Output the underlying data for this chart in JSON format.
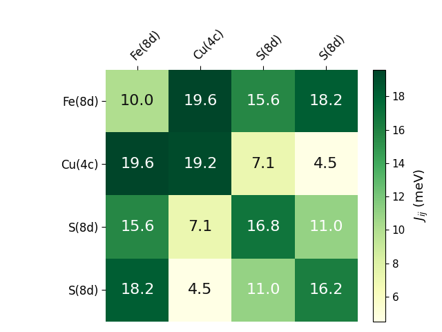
{
  "labels": [
    "Fe(8d)",
    "Cu(4c)",
    "S(8d)",
    "S(8d)"
  ],
  "matrix": [
    [
      10.0,
      19.6,
      15.6,
      18.2
    ],
    [
      19.6,
      19.2,
      7.1,
      4.5
    ],
    [
      15.6,
      7.1,
      16.8,
      11.0
    ],
    [
      18.2,
      4.5,
      11.0,
      16.2
    ]
  ],
  "vmin": 4.5,
  "vmax": 19.6,
  "cbar_label": "$J_{ij}$ (meV)",
  "cbar_ticks": [
    6,
    8,
    10,
    12,
    14,
    16,
    18
  ],
  "colormap": "YlGn",
  "text_threshold": 0.42,
  "figsize": [
    6.4,
    4.8
  ],
  "dpi": 100,
  "annotation_fontsize": 16,
  "tick_fontsize": 12,
  "cbar_tick_fontsize": 11,
  "cbar_label_fontsize": 13
}
